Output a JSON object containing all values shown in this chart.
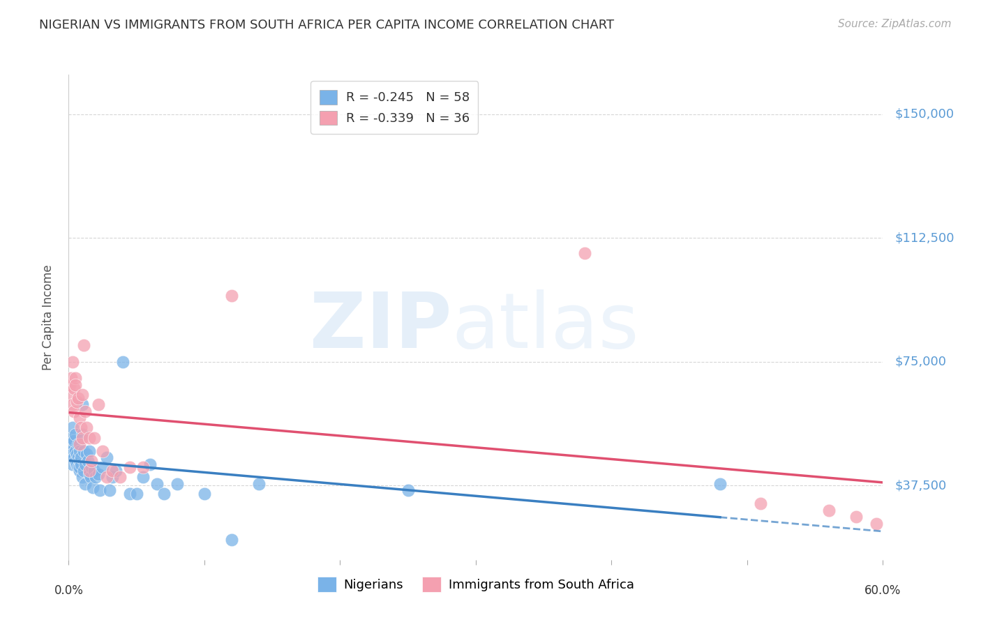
{
  "title": "NIGERIAN VS IMMIGRANTS FROM SOUTH AFRICA PER CAPITA INCOME CORRELATION CHART",
  "source": "Source: ZipAtlas.com",
  "ylabel": "Per Capita Income",
  "ylim": [
    15000,
    162000
  ],
  "xlim": [
    0.0,
    0.6
  ],
  "background_color": "#ffffff",
  "grid_color": "#cccccc",
  "nigerians_color": "#7ab3e8",
  "sa_color": "#f4a0b0",
  "nigerians_line_color": "#3a7fc1",
  "sa_line_color": "#e05070",
  "legend_label_1": "R = -0.245   N = 58",
  "legend_label_2": "R = -0.339   N = 36",
  "legend_nigerians": "Nigerians",
  "legend_sa": "Immigrants from South Africa",
  "ytick_vals": [
    37500,
    75000,
    112500,
    150000
  ],
  "ytick_labels": [
    "$37,500",
    "$75,000",
    "$112,500",
    "$150,000"
  ],
  "nigerians_x": [
    0.001,
    0.002,
    0.002,
    0.003,
    0.003,
    0.003,
    0.004,
    0.004,
    0.005,
    0.005,
    0.005,
    0.006,
    0.006,
    0.007,
    0.007,
    0.007,
    0.008,
    0.008,
    0.008,
    0.008,
    0.009,
    0.009,
    0.01,
    0.01,
    0.01,
    0.011,
    0.011,
    0.012,
    0.012,
    0.013,
    0.014,
    0.015,
    0.015,
    0.016,
    0.017,
    0.018,
    0.019,
    0.02,
    0.022,
    0.023,
    0.025,
    0.028,
    0.03,
    0.032,
    0.035,
    0.04,
    0.045,
    0.05,
    0.055,
    0.06,
    0.065,
    0.07,
    0.08,
    0.1,
    0.12,
    0.14,
    0.25,
    0.48
  ],
  "nigerians_y": [
    50000,
    48000,
    52000,
    47000,
    55000,
    44000,
    46000,
    51000,
    45000,
    53000,
    48000,
    47000,
    44000,
    50000,
    43000,
    46000,
    42000,
    45000,
    48000,
    43000,
    44000,
    46000,
    62000,
    53000,
    40000,
    48000,
    42000,
    44000,
    38000,
    47000,
    45000,
    48000,
    41000,
    40000,
    43000,
    37000,
    42000,
    40000,
    41000,
    36000,
    43000,
    46000,
    36000,
    40000,
    42000,
    75000,
    35000,
    35000,
    40000,
    44000,
    38000,
    35000,
    38000,
    35000,
    21000,
    38000,
    36000,
    38000
  ],
  "sa_x": [
    0.001,
    0.002,
    0.002,
    0.003,
    0.003,
    0.004,
    0.004,
    0.005,
    0.005,
    0.006,
    0.007,
    0.008,
    0.008,
    0.009,
    0.01,
    0.01,
    0.011,
    0.012,
    0.013,
    0.015,
    0.015,
    0.017,
    0.019,
    0.022,
    0.025,
    0.028,
    0.032,
    0.038,
    0.045,
    0.055,
    0.12,
    0.38,
    0.51,
    0.56,
    0.58,
    0.595
  ],
  "sa_y": [
    68000,
    65000,
    70000,
    62000,
    75000,
    67000,
    60000,
    70000,
    68000,
    63000,
    64000,
    58000,
    50000,
    55000,
    65000,
    52000,
    80000,
    60000,
    55000,
    52000,
    42000,
    45000,
    52000,
    62000,
    48000,
    40000,
    42000,
    40000,
    43000,
    43000,
    95000,
    108000,
    32000,
    30000,
    28000,
    26000
  ]
}
